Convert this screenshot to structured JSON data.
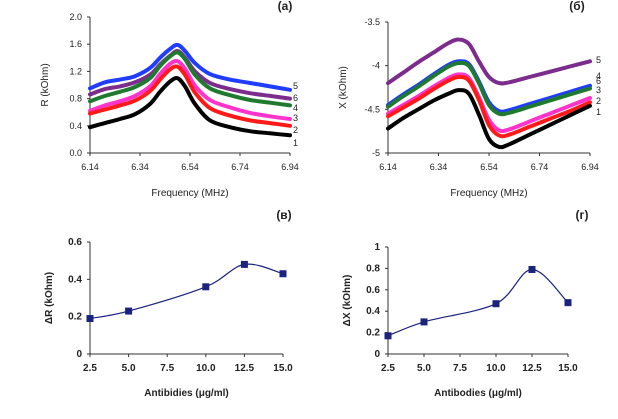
{
  "chart_data": [
    {
      "type": "line",
      "panel_label": "(а)",
      "xlabel": "Frequency (MHz)",
      "ylabel": "R (kOhm)",
      "xlim": [
        6.14,
        6.94
      ],
      "ylim": [
        0.0,
        2.0
      ],
      "x_ticks": [
        "6.14",
        "6.34",
        "6.54",
        "6.74",
        "6.94"
      ],
      "y_ticks": [
        "0.0",
        "0.4",
        "0.8",
        "1.2",
        "1.6",
        "2.0"
      ],
      "grid": false,
      "x": [
        6.14,
        6.2,
        6.26,
        6.32,
        6.38,
        6.42,
        6.46,
        6.49,
        6.52,
        6.56,
        6.62,
        6.7,
        6.78,
        6.86,
        6.94
      ],
      "series": [
        {
          "name": "5",
          "color": "#1f3cff",
          "values": [
            0.95,
            1.04,
            1.08,
            1.13,
            1.25,
            1.4,
            1.53,
            1.59,
            1.5,
            1.32,
            1.16,
            1.08,
            1.03,
            0.98,
            0.93
          ]
        },
        {
          "name": "6",
          "color": "#7b2c8c",
          "values": [
            0.86,
            0.94,
            0.98,
            1.04,
            1.15,
            1.3,
            1.43,
            1.5,
            1.4,
            1.2,
            1.03,
            0.94,
            0.88,
            0.84,
            0.8
          ]
        },
        {
          "name": "4",
          "color": "#1f7a30",
          "values": [
            0.76,
            0.84,
            0.9,
            0.97,
            1.1,
            1.28,
            1.42,
            1.48,
            1.38,
            1.15,
            0.95,
            0.85,
            0.78,
            0.74,
            0.7
          ]
        },
        {
          "name": "3",
          "color": "#ff33cc",
          "values": [
            0.62,
            0.7,
            0.76,
            0.84,
            0.98,
            1.16,
            1.31,
            1.35,
            1.24,
            0.99,
            0.78,
            0.67,
            0.59,
            0.54,
            0.5
          ]
        },
        {
          "name": "2",
          "color": "#ff1a1a",
          "values": [
            0.58,
            0.64,
            0.7,
            0.77,
            0.91,
            1.08,
            1.23,
            1.27,
            1.15,
            0.89,
            0.66,
            0.55,
            0.48,
            0.44,
            0.4
          ]
        },
        {
          "name": "1",
          "color": "#000000",
          "values": [
            0.38,
            0.44,
            0.5,
            0.57,
            0.72,
            0.9,
            1.05,
            1.1,
            0.98,
            0.72,
            0.48,
            0.38,
            0.32,
            0.29,
            0.26
          ]
        }
      ]
    },
    {
      "type": "line",
      "panel_label": "(б)",
      "xlabel": "Frequency (MHz)",
      "ylabel": "X (kOhm)",
      "xlim": [
        6.14,
        6.94
      ],
      "ylim": [
        -5.0,
        -3.5
      ],
      "x_ticks": [
        "6.14",
        "6.34",
        "6.54",
        "6.74",
        "6.94"
      ],
      "y_ticks": [
        "-5",
        "-4.5",
        "-4",
        "-3.5"
      ],
      "grid": false,
      "x": [
        6.14,
        6.2,
        6.26,
        6.32,
        6.38,
        6.42,
        6.46,
        6.5,
        6.54,
        6.58,
        6.62,
        6.7,
        6.78,
        6.86,
        6.94
      ],
      "series": [
        {
          "name": "5",
          "color": "#7b2c8c",
          "values": [
            -4.2,
            -4.08,
            -3.96,
            -3.85,
            -3.74,
            -3.7,
            -3.75,
            -3.95,
            -4.13,
            -4.2,
            -4.19,
            -4.13,
            -4.07,
            -4.01,
            -3.95
          ]
        },
        {
          "name": "4",
          "color": "#1f3cff",
          "values": [
            -4.45,
            -4.33,
            -4.22,
            -4.1,
            -3.99,
            -3.95,
            -3.98,
            -4.18,
            -4.42,
            -4.52,
            -4.51,
            -4.44,
            -4.37,
            -4.3,
            -4.23
          ]
        },
        {
          "name": "6",
          "color": "#1f7a30",
          "values": [
            -4.47,
            -4.35,
            -4.24,
            -4.12,
            -4.01,
            -3.97,
            -4.0,
            -4.2,
            -4.45,
            -4.55,
            -4.54,
            -4.47,
            -4.4,
            -4.33,
            -4.26
          ]
        },
        {
          "name": "3",
          "color": "#ff33cc",
          "values": [
            -4.55,
            -4.45,
            -4.35,
            -4.24,
            -4.14,
            -4.1,
            -4.14,
            -4.36,
            -4.62,
            -4.74,
            -4.73,
            -4.64,
            -4.55,
            -4.46,
            -4.37
          ]
        },
        {
          "name": "2",
          "color": "#ff1a1a",
          "values": [
            -4.58,
            -4.48,
            -4.38,
            -4.27,
            -4.17,
            -4.13,
            -4.17,
            -4.39,
            -4.68,
            -4.8,
            -4.79,
            -4.7,
            -4.61,
            -4.52,
            -4.42
          ]
        },
        {
          "name": "1",
          "color": "#000000",
          "values": [
            -4.72,
            -4.6,
            -4.5,
            -4.4,
            -4.32,
            -4.28,
            -4.32,
            -4.56,
            -4.84,
            -4.93,
            -4.9,
            -4.79,
            -4.68,
            -4.57,
            -4.46
          ]
        }
      ]
    },
    {
      "type": "line",
      "panel_label": "(в)",
      "xlabel": "Antibidies (μg/ml)",
      "ylabel": "ΔR (kOhm)",
      "xlim": [
        2.5,
        15.0
      ],
      "ylim": [
        0,
        0.6
      ],
      "x_ticks": [
        "2.5",
        "5.0",
        "7.5",
        "10.0",
        "12.5",
        "15.0"
      ],
      "y_ticks": [
        "0",
        "0.2",
        "0.4",
        "0.6"
      ],
      "grid": false,
      "x": [
        2.5,
        5.0,
        10.0,
        12.5,
        15.0
      ],
      "series": [
        {
          "color": "#1a237e",
          "marker": "square",
          "values": [
            0.19,
            0.23,
            0.36,
            0.48,
            0.43
          ]
        }
      ]
    },
    {
      "type": "line",
      "panel_label": "(г)",
      "xlabel": "Antibodies (μg/ml)",
      "ylabel": "ΔX (kOhm)",
      "xlim": [
        2.5,
        15.0
      ],
      "ylim": [
        0,
        1
      ],
      "x_ticks": [
        "2.5",
        "5.0",
        "7.5",
        "10.0",
        "12.5",
        "15.0"
      ],
      "y_ticks": [
        "0",
        "0.2",
        "0.4",
        "0.6",
        "0.8",
        "1"
      ],
      "grid": false,
      "x": [
        2.5,
        5.0,
        10.0,
        12.5,
        15.0
      ],
      "series": [
        {
          "color": "#1a237e",
          "marker": "square",
          "values": [
            0.17,
            0.3,
            0.47,
            0.79,
            0.48
          ]
        }
      ]
    }
  ]
}
